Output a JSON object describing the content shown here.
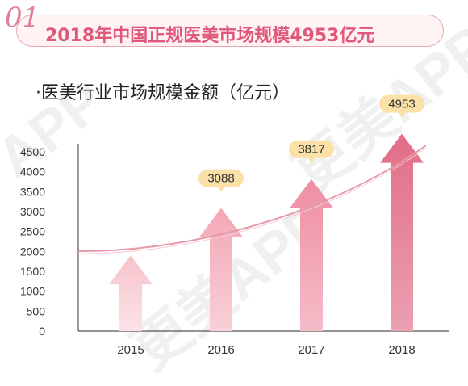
{
  "header": {
    "number": "01",
    "title": "2018年中国正规医美市场规模4953亿元"
  },
  "watermarks": [
    "更美APP",
    "更美APP",
    "APP"
  ],
  "chart_data": {
    "type": "bar",
    "title": "·医美行业市场规模金额（亿元）",
    "categories": [
      "2015",
      "2016",
      "2017",
      "2018"
    ],
    "values": [
      1900,
      3088,
      3817,
      4953
    ],
    "data_labels": [
      "",
      "3088",
      "3817",
      "4953"
    ],
    "ylim": [
      0,
      4500
    ],
    "yticks": [
      0,
      500,
      1000,
      1500,
      2000,
      2500,
      3000,
      3500,
      4000,
      4500
    ],
    "grid": false,
    "bar_shape": "arrow",
    "trend_curve": true,
    "colors": {
      "arrow_top": [
        "#f6c2cb",
        "#f3a7b6",
        "#ee8ea3",
        "#e26d86"
      ],
      "arrow_bottom": [
        "#fbe3e7",
        "#f8d0d8",
        "#f5bcc8",
        "#eba0b2"
      ],
      "trend": "#e69aa9",
      "label_bg": "#fbe0a8",
      "axis": "#555555"
    }
  }
}
